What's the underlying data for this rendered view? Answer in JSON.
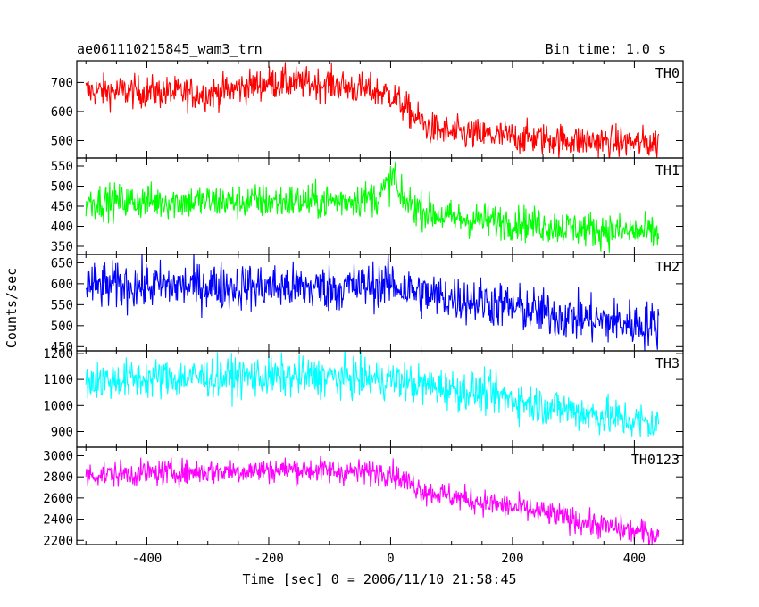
{
  "chart_data": {
    "type": "line",
    "title": "ae061110215845_wam3_trn",
    "bin_time": "Bin time: 1.0 s",
    "xlabel": "Time [sec] 0 = 2006/11/10 21:58:45",
    "ylabel": "Counts/sec",
    "xlim": [
      -515,
      480
    ],
    "x_ticks": [
      -400,
      -200,
      0,
      200,
      400
    ],
    "x_range": [
      -500,
      440
    ],
    "grid": false,
    "panels": [
      {
        "name": "TH0",
        "color": "#ff0000",
        "ylim": [
          440,
          775
        ],
        "y_ticks": [
          500,
          600,
          700
        ],
        "trend": [
          [
            -500,
            670
          ],
          [
            -400,
            668
          ],
          [
            -300,
            660
          ],
          [
            -200,
            700
          ],
          [
            -100,
            695
          ],
          [
            0,
            660
          ],
          [
            10,
            640
          ],
          [
            60,
            545
          ],
          [
            100,
            525
          ],
          [
            200,
            512
          ],
          [
            300,
            500
          ],
          [
            440,
            490
          ]
        ],
        "noise": 28
      },
      {
        "name": "TH1",
        "color": "#00ff00",
        "ylim": [
          330,
          570
        ],
        "y_ticks": [
          350,
          400,
          450,
          500,
          550
        ],
        "trend": [
          [
            -500,
            462
          ],
          [
            -300,
            462
          ],
          [
            -100,
            462
          ],
          [
            -20,
            472
          ],
          [
            0,
            510
          ],
          [
            8,
            540
          ],
          [
            12,
            470
          ],
          [
            60,
            435
          ],
          [
            100,
            420
          ],
          [
            200,
            410
          ],
          [
            300,
            395
          ],
          [
            440,
            382
          ]
        ],
        "noise": 22
      },
      {
        "name": "TH2",
        "color": "#0000ff",
        "ylim": [
          440,
          670
        ],
        "y_ticks": [
          450,
          500,
          550,
          600,
          650
        ],
        "trend": [
          [
            -500,
            595
          ],
          [
            -300,
            595
          ],
          [
            -100,
            590
          ],
          [
            0,
            600
          ],
          [
            60,
            572
          ],
          [
            150,
            558
          ],
          [
            250,
            530
          ],
          [
            350,
            510
          ],
          [
            440,
            500
          ]
        ],
        "noise": 28
      },
      {
        "name": "TH3",
        "color": "#00ffff",
        "ylim": [
          840,
          1210
        ],
        "y_ticks": [
          900,
          1000,
          1100,
          1200
        ],
        "trend": [
          [
            -500,
            1095
          ],
          [
            -300,
            1110
          ],
          [
            -150,
            1110
          ],
          [
            0,
            1100
          ],
          [
            60,
            1075
          ],
          [
            150,
            1050
          ],
          [
            250,
            1000
          ],
          [
            350,
            960
          ],
          [
            440,
            925
          ]
        ],
        "noise": 38
      },
      {
        "name": "TH0123",
        "color": "#ff00ff",
        "ylim": [
          2160,
          3080
        ],
        "y_ticks": [
          2200,
          2400,
          2600,
          2800,
          3000
        ],
        "trend": [
          [
            -500,
            2820
          ],
          [
            -300,
            2850
          ],
          [
            -150,
            2870
          ],
          [
            -50,
            2840
          ],
          [
            0,
            2850
          ],
          [
            10,
            2800
          ],
          [
            60,
            2660
          ],
          [
            150,
            2560
          ],
          [
            250,
            2460
          ],
          [
            350,
            2330
          ],
          [
            440,
            2250
          ]
        ],
        "noise": 60
      }
    ]
  }
}
